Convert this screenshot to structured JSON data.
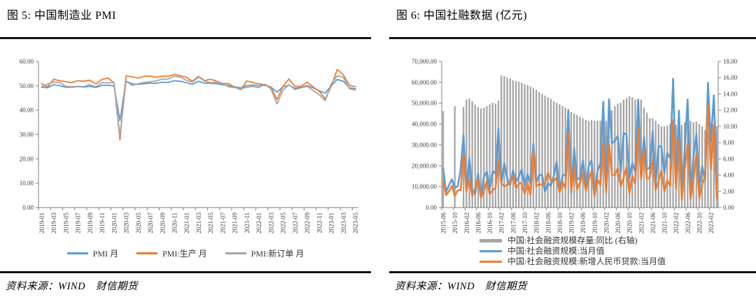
{
  "colors": {
    "blue": "#5B9BD5",
    "orange": "#ED7D31",
    "gray": "#A5A5A5",
    "axis": "#808080",
    "rule": "#111111"
  },
  "chart_data": [
    {
      "id": "fig5",
      "type": "line",
      "title": "图 5: 中国制造业 PMI",
      "source": "资料来源：WIND　财信期货",
      "grid": false,
      "legend_position": "bottom",
      "ylim": [
        0,
        60
      ],
      "y_ticks": [
        "0.00",
        "10.00",
        "20.00",
        "30.00",
        "40.00",
        "50.00",
        "60.00"
      ],
      "x_tick_every": 2,
      "x": [
        "2019-01",
        "2019-02",
        "2019-03",
        "2019-04",
        "2019-05",
        "2019-06",
        "2019-07",
        "2019-08",
        "2019-09",
        "2019-10",
        "2019-11",
        "2019-12",
        "2020-01",
        "2020-02",
        "2020-03",
        "2020-04",
        "2020-05",
        "2020-06",
        "2020-07",
        "2020-08",
        "2020-09",
        "2020-10",
        "2020-11",
        "2020-12",
        "2021-01",
        "2021-02",
        "2021-03",
        "2021-04",
        "2021-05",
        "2021-06",
        "2021-07",
        "2021-08",
        "2021-09",
        "2021-10",
        "2021-11",
        "2021-12",
        "2022-01",
        "2022-02",
        "2022-03",
        "2022-04",
        "2022-05",
        "2022-06",
        "2022-07",
        "2022-08",
        "2022-09",
        "2022-10",
        "2022-11",
        "2022-12",
        "2023-01",
        "2023-02",
        "2023-03",
        "2023-04",
        "2023-05"
      ],
      "series": [
        {
          "name": "PMI 月",
          "color": "#5B9BD5",
          "width": 1.8,
          "values": [
            49.5,
            49.2,
            50.5,
            50.1,
            49.4,
            49.4,
            49.7,
            49.5,
            49.8,
            49.3,
            50.2,
            50.2,
            50.0,
            35.7,
            52.0,
            50.8,
            50.6,
            50.9,
            51.1,
            51.0,
            51.5,
            51.4,
            52.1,
            51.9,
            51.3,
            50.6,
            51.9,
            51.1,
            51.0,
            50.9,
            50.4,
            50.1,
            49.6,
            49.2,
            50.1,
            50.3,
            50.1,
            50.2,
            49.5,
            47.4,
            49.6,
            50.2,
            49.0,
            49.4,
            50.1,
            49.2,
            48.0,
            47.0,
            50.1,
            52.6,
            51.9,
            49.2,
            48.8
          ]
        },
        {
          "name": "PMI:生产 月",
          "color": "#ED7D31",
          "width": 1.8,
          "values": [
            50.9,
            49.5,
            52.7,
            52.1,
            51.7,
            51.3,
            52.1,
            51.9,
            52.3,
            50.8,
            52.6,
            53.2,
            51.3,
            27.8,
            54.1,
            53.7,
            53.2,
            53.9,
            54.0,
            53.5,
            54.0,
            53.9,
            54.7,
            54.2,
            53.5,
            51.9,
            53.9,
            52.2,
            52.7,
            51.9,
            51.0,
            50.9,
            49.5,
            48.4,
            52.0,
            51.4,
            50.9,
            50.4,
            49.5,
            44.4,
            49.7,
            52.8,
            49.8,
            49.8,
            51.5,
            49.6,
            47.8,
            44.6,
            49.8,
            56.7,
            54.6,
            50.2,
            49.6
          ]
        },
        {
          "name": "PMI:新订单 月",
          "color": "#A5A5A5",
          "width": 1.8,
          "values": [
            49.6,
            50.6,
            51.6,
            51.4,
            49.8,
            49.6,
            49.8,
            49.7,
            50.5,
            49.6,
            51.3,
            51.2,
            51.4,
            29.3,
            52.0,
            50.2,
            50.9,
            51.4,
            51.7,
            52.0,
            52.8,
            52.8,
            53.9,
            53.6,
            52.3,
            51.5,
            53.6,
            52.0,
            51.3,
            51.5,
            50.9,
            49.6,
            49.3,
            48.8,
            49.4,
            49.7,
            49.3,
            50.7,
            48.8,
            42.6,
            48.2,
            50.4,
            48.5,
            49.2,
            49.8,
            48.1,
            46.4,
            43.9,
            50.9,
            54.1,
            53.6,
            48.8,
            48.3
          ]
        }
      ]
    },
    {
      "id": "fig6",
      "type": "bar+line",
      "title": "图 6: 中国社融数据 (亿元)",
      "source": "资料来源：WIND　财信期货",
      "grid": false,
      "legend_position": "bottom",
      "left_ylim": [
        0,
        70000
      ],
      "left_y_ticks": [
        "0.00",
        "10,000.00",
        "20,000.00",
        "30,000.00",
        "40,000.00",
        "50,000.00",
        "60,000.00",
        "70,000.00"
      ],
      "right_ylim": [
        0,
        18
      ],
      "right_y_ticks": [
        "0.00",
        "2.00",
        "4.00",
        "6.00",
        "8.00",
        "10.00",
        "12.00",
        "14.00",
        "16.00",
        "18.00"
      ],
      "x_tick_every": 4,
      "x": [
        "2015-06",
        "2015-07",
        "2015-08",
        "2015-09",
        "2015-10",
        "2015-11",
        "2015-12",
        "2016-01",
        "2016-02",
        "2016-03",
        "2016-04",
        "2016-05",
        "2016-06",
        "2016-07",
        "2016-08",
        "2016-09",
        "2016-10",
        "2016-11",
        "2016-12",
        "2017-01",
        "2017-02",
        "2017-03",
        "2017-04",
        "2017-05",
        "2017-06",
        "2017-07",
        "2017-08",
        "2017-09",
        "2017-10",
        "2017-11",
        "2017-12",
        "2018-01",
        "2018-02",
        "2018-03",
        "2018-04",
        "2018-05",
        "2018-06",
        "2018-07",
        "2018-08",
        "2018-09",
        "2018-10",
        "2018-11",
        "2018-12",
        "2019-01",
        "2019-02",
        "2019-03",
        "2019-04",
        "2019-05",
        "2019-06",
        "2019-07",
        "2019-08",
        "2019-09",
        "2019-10",
        "2019-11",
        "2019-12",
        "2020-01",
        "2020-02",
        "2020-03",
        "2020-04",
        "2020-05",
        "2020-06",
        "2020-07",
        "2020-08",
        "2020-09",
        "2020-10",
        "2020-11",
        "2020-12",
        "2021-01",
        "2021-02",
        "2021-03",
        "2021-04",
        "2021-05",
        "2021-06",
        "2021-07",
        "2021-08",
        "2021-09",
        "2021-10",
        "2021-11",
        "2021-12",
        "2022-01",
        "2022-02",
        "2022-03",
        "2022-04",
        "2022-05",
        "2022-06",
        "2022-07",
        "2022-08",
        "2022-09",
        "2022-10",
        "2022-11",
        "2022-12",
        "2023-01",
        "2023-02",
        "2023-03",
        "2023-04"
      ],
      "series": [
        {
          "name": "中国:社会融资规模存量:同比 (右轴)",
          "kind": "bar",
          "axis": "right",
          "color": "#A6A6A6",
          "values": [
            11.9,
            null,
            null,
            null,
            12.5,
            null,
            null,
            12.4,
            13.3,
            13.4,
            13.1,
            12.7,
            12.4,
            12.2,
            12.3,
            12.5,
            12.7,
            12.9,
            12.8,
            13.2,
            16.3,
            16.2,
            16.0,
            15.9,
            15.7,
            15.6,
            15.5,
            15.4,
            15.2,
            15.1,
            14.9,
            14.7,
            14.5,
            14.2,
            14.0,
            13.8,
            13.6,
            13.4,
            13.1,
            12.9,
            12.7,
            12.5,
            12.3,
            12.1,
            11.8,
            11.6,
            11.4,
            11.2,
            11.0,
            10.8,
            10.7,
            10.8,
            10.7,
            10.7,
            10.7,
            10.7,
            10.7,
            11.5,
            12.0,
            12.5,
            12.8,
            12.9,
            13.3,
            13.5,
            13.7,
            13.6,
            13.3,
            13.0,
            13.3,
            12.3,
            11.7,
            11.0,
            11.0,
            10.7,
            10.3,
            10.0,
            10.0,
            10.1,
            10.3,
            10.5,
            10.2,
            10.6,
            10.2,
            10.5,
            10.8,
            10.7,
            10.5,
            10.6,
            10.3,
            10.0,
            9.6,
            9.4,
            9.9,
            10.0,
            10.0
          ]
        },
        {
          "name": "中国:社会融资规模:当月值",
          "kind": "line",
          "axis": "left",
          "color": "#5B9BD5",
          "width": 2.6,
          "values": [
            18600,
            7500,
            10800,
            13500,
            9300,
            10200,
            18200,
            34800,
            7800,
            23600,
            7800,
            6600,
            16300,
            4900,
            14700,
            17200,
            8900,
            17400,
            16300,
            37800,
            11500,
            21200,
            13900,
            10600,
            17800,
            12200,
            14800,
            18200,
            10400,
            16000,
            11400,
            30600,
            11900,
            15600,
            15600,
            7600,
            11800,
            10400,
            15200,
            22100,
            7400,
            15200,
            15900,
            46800,
            7000,
            28600,
            13600,
            14000,
            22600,
            10100,
            19800,
            22700,
            6200,
            17500,
            21000,
            50700,
            8600,
            51900,
            30900,
            31900,
            34300,
            16900,
            35800,
            34800,
            14200,
            21300,
            17200,
            51700,
            17100,
            33700,
            18500,
            19200,
            36700,
            10600,
            29600,
            29000,
            16200,
            26100,
            23700,
            61700,
            11900,
            46500,
            9100,
            27900,
            51700,
            7600,
            24300,
            35300,
            9100,
            19900,
            13100,
            59800,
            31600,
            53800,
            12200
          ]
        },
        {
          "name": "中国:社会融资规模:新增人民币贷款:当月值",
          "kind": "line",
          "axis": "left",
          "color": "#ED7D31",
          "width": 2.6,
          "values": [
            12800,
            5900,
            7800,
            10500,
            5600,
            8300,
            8300,
            25400,
            8100,
            13500,
            5600,
            9400,
            13600,
            4600,
            7900,
            12700,
            6500,
            8400,
            9200,
            23100,
            11700,
            10200,
            10800,
            11800,
            15400,
            9200,
            11500,
            11800,
            6600,
            11800,
            5800,
            26900,
            10200,
            11200,
            11000,
            11400,
            16700,
            12900,
            12700,
            14300,
            7200,
            12300,
            9300,
            35700,
            7600,
            19600,
            8800,
            11900,
            16700,
            8100,
            13000,
            17600,
            5500,
            13600,
            10800,
            31100,
            7200,
            30400,
            15700,
            15500,
            19000,
            10200,
            14200,
            19400,
            6700,
            15300,
            11500,
            38000,
            13400,
            27500,
            13800,
            14300,
            23200,
            8400,
            12700,
            17800,
            7800,
            13000,
            10400,
            41900,
            9100,
            32300,
            3600,
            18400,
            30600,
            4100,
            13300,
            25700,
            4400,
            11400,
            14400,
            49300,
            18200,
            39500,
            4400
          ]
        }
      ]
    }
  ]
}
